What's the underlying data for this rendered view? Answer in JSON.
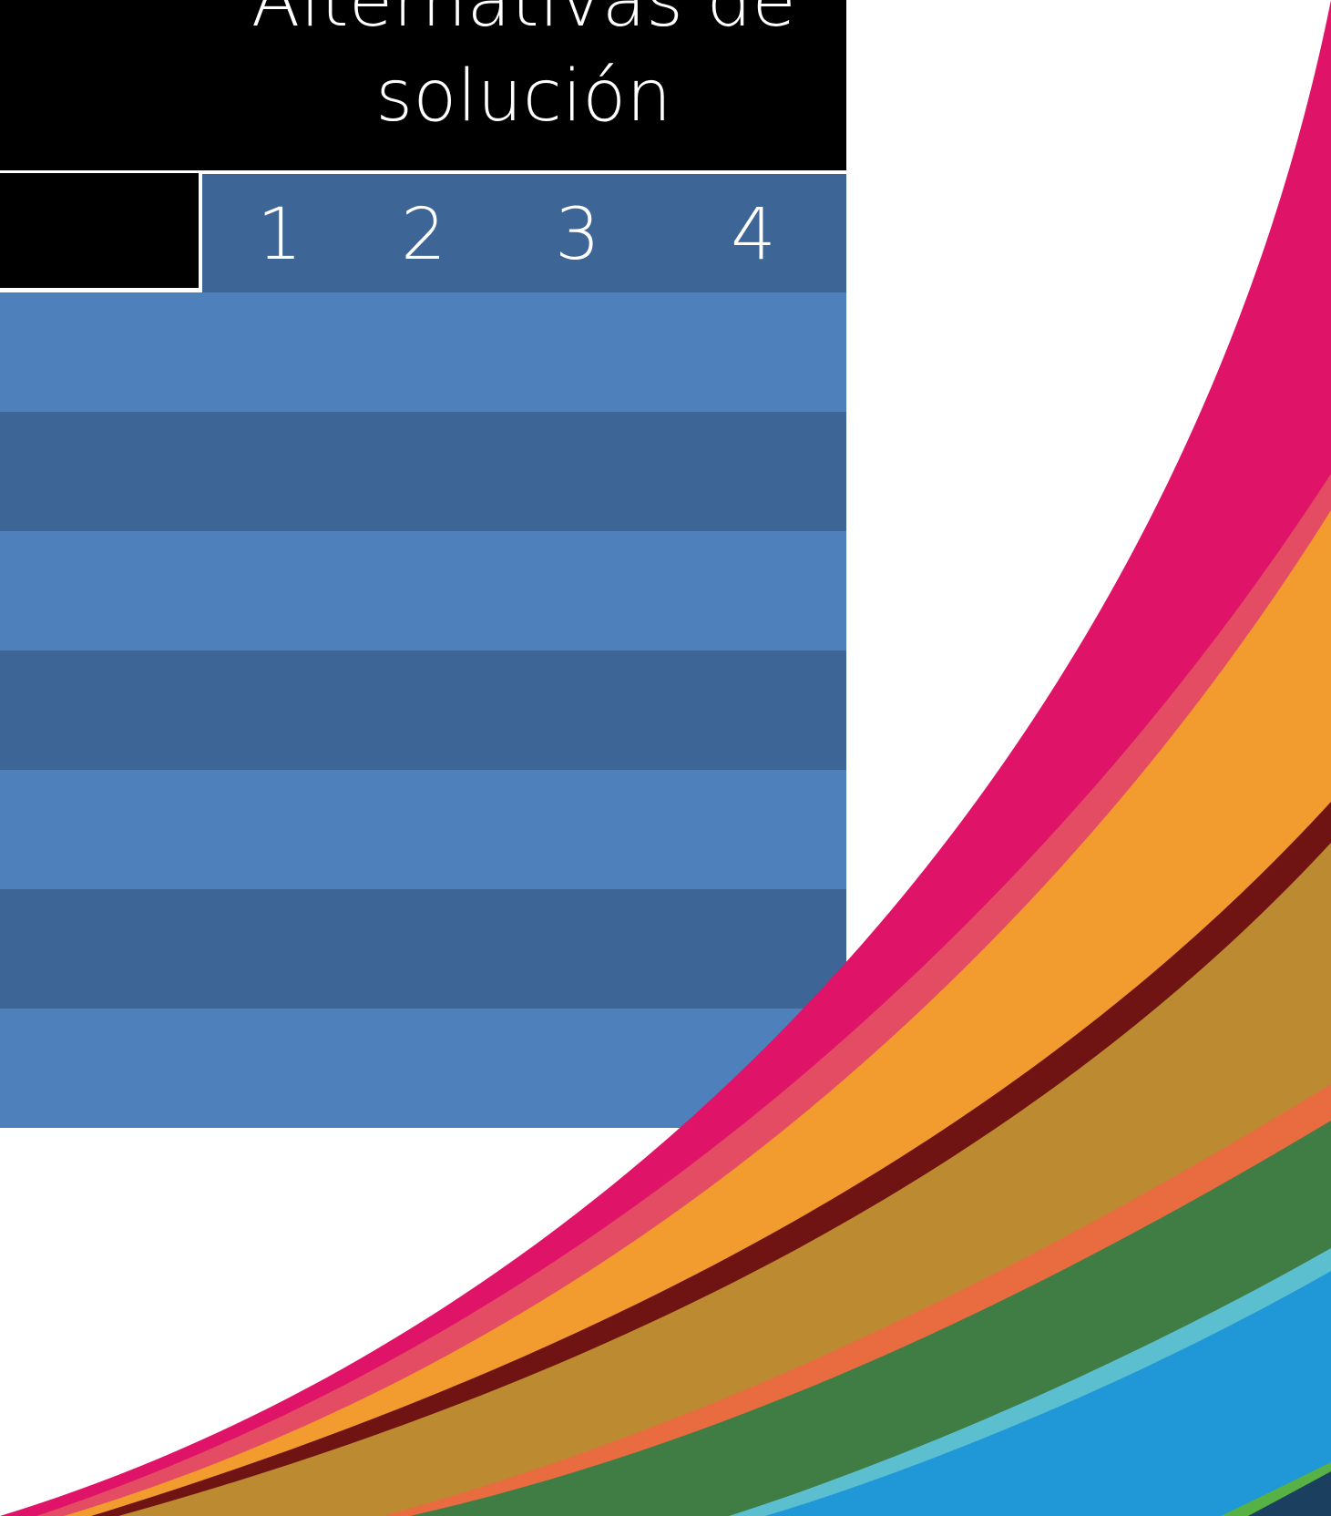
{
  "title_lines": [
    "Alternativas de",
    "solución"
  ],
  "table": {
    "column_headers": [
      "1",
      "2",
      "3",
      "4"
    ],
    "row_count": 7
  },
  "colors": {
    "title_bg": "#000000",
    "header_bg": "#3d6595",
    "row_light": "#4e80bc",
    "row_dark": "#3d6595",
    "stripe_bands": [
      "#df1368",
      "#e44c64",
      "#f29b2f",
      "#6f1412",
      "#bc8a30",
      "#e86c40",
      "#3f7d44",
      "#5cbfd0",
      "#2097d6",
      "#58b145",
      "#1b3f5e"
    ]
  }
}
